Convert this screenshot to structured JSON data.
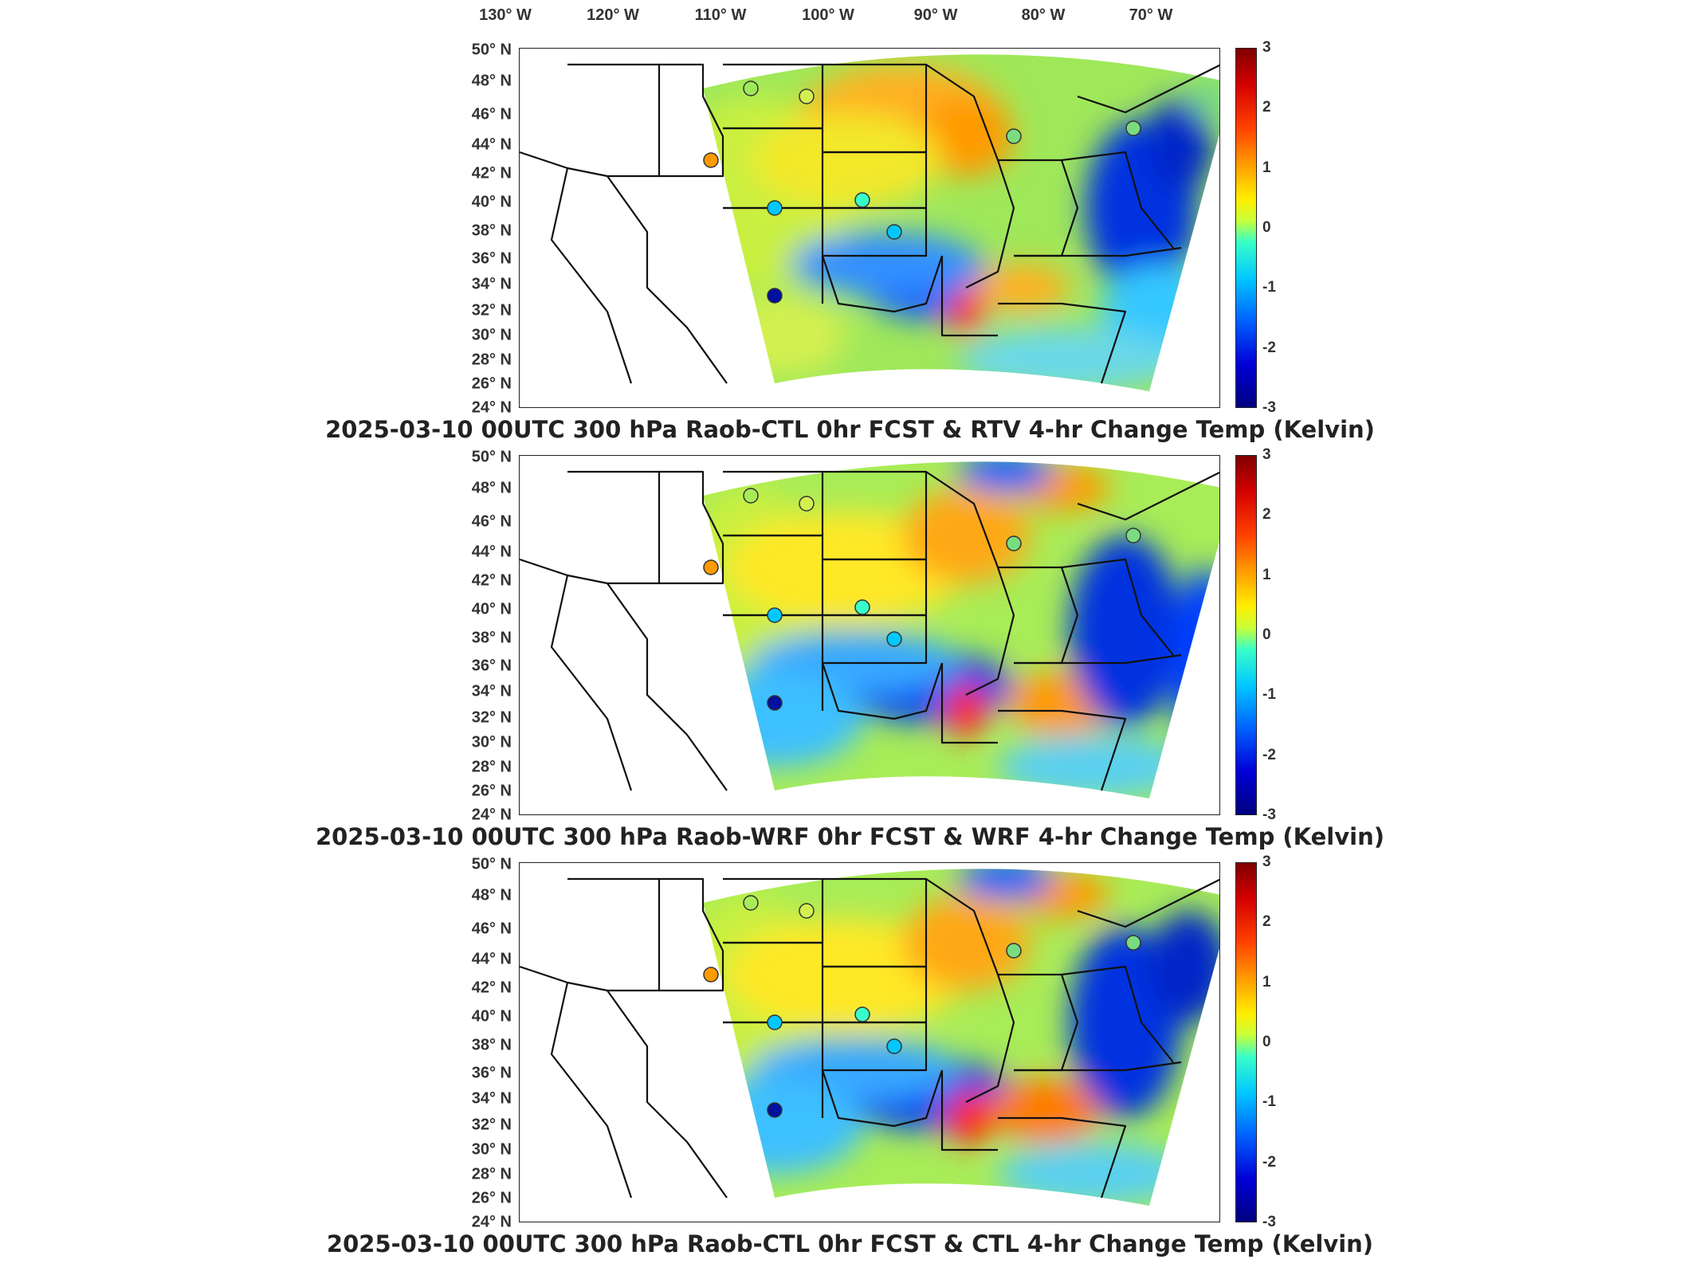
{
  "lon_labels": [
    "130° W",
    "120° W",
    "110° W",
    "100° W",
    "90° W",
    "80° W",
    "70° W"
  ],
  "lat_labels": [
    "50° N",
    "48° N",
    "46° N",
    "44° N",
    "42° N",
    "40° N",
    "38° N",
    "36° N",
    "34° N",
    "32° N",
    "30° N",
    "28° N",
    "26° N",
    "24° N"
  ],
  "colorbar": {
    "ticks": [
      "3",
      "2",
      "1",
      "0",
      "-1",
      "-2",
      "-3"
    ],
    "colors": [
      "#800000",
      "#d40000",
      "#ff4000",
      "#ff9a00",
      "#ffee00",
      "#c8ff38",
      "#38ffc8",
      "#00c8ff",
      "#0060ff",
      "#0000d8",
      "#00007f"
    ]
  },
  "panels": [
    {
      "title": "2025-03-10 00UTC 300 hPa Raob-CTL 0hr FCST & RTV 4-hr Change Temp (Kelvin)"
    },
    {
      "title": "2025-03-10 00UTC 300 hPa Raob-WRF 0hr FCST & WRF 4-hr Change Temp (Kelvin)"
    },
    {
      "title": "2025-03-10 00UTC 300 hPa Raob-CTL 0hr FCST & CTL 4-hr Change Temp (Kelvin)"
    }
  ]
}
